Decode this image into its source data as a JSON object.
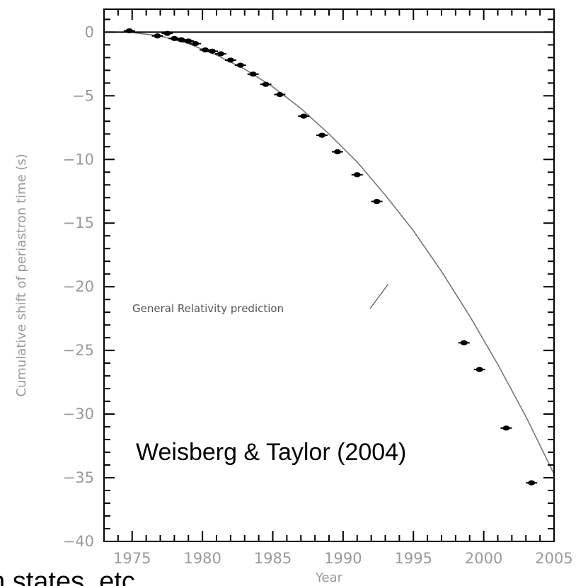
{
  "chart_data": {
    "type": "scatter",
    "xlabel": "Year",
    "ylabel": "Cumulative shift of periastron time (s)",
    "xlim": [
      1973,
      2005
    ],
    "ylim": [
      -40,
      1.8
    ],
    "xticks": [
      1975,
      1980,
      1985,
      1990,
      1995,
      2000,
      2005
    ],
    "yticks": [
      0,
      -5,
      -10,
      -15,
      -20,
      -25,
      -30,
      -35,
      -40
    ],
    "x_tick_labels": [
      "1975",
      "1980",
      "1985",
      "1990",
      "1995",
      "2000",
      "2005"
    ],
    "y_tick_labels": [
      "0",
      "−5",
      "−10",
      "−15",
      "−20",
      "−25",
      "−30",
      "−35",
      "−40"
    ],
    "grid": false,
    "series": [
      {
        "x": [
          1974.8,
          1976.8,
          1977.5,
          1978.0,
          1978.5,
          1979.0,
          1979.5,
          1980.2,
          1980.7,
          1981.3,
          1982.0,
          1982.7,
          1983.6,
          1984.5,
          1985.5,
          1987.2,
          1988.5,
          1989.6,
          1991.0,
          1992.4,
          1998.6,
          1999.7,
          2001.6,
          2003.4
        ],
        "y": [
          0.1,
          -0.3,
          -0.1,
          -0.5,
          -0.6,
          -0.7,
          -0.9,
          -1.4,
          -1.5,
          -1.7,
          -2.2,
          -2.6,
          -3.3,
          -4.1,
          -4.9,
          -6.6,
          -8.1,
          -9.4,
          -11.2,
          -13.3,
          -24.4,
          -26.5,
          -31.1,
          -35.4
        ]
      }
    ],
    "reference_line": {
      "y": 0
    },
    "curve": {
      "label": "General Relativity prediction",
      "x": [
        1974.8,
        1977,
        1979,
        1981,
        1983,
        1985,
        1987,
        1989,
        1991,
        1993,
        1995,
        1997,
        1999,
        2001,
        2003,
        2005
      ],
      "y": [
        0,
        -0.3,
        -0.9,
        -1.8,
        -2.9,
        -4.3,
        -6.0,
        -8.0,
        -10.2,
        -12.8,
        -15.6,
        -18.8,
        -22.3,
        -26.1,
        -30.2,
        -34.7
      ]
    },
    "credit": "Weisberg & Taylor (2004)"
  },
  "stray_text": "n states, etc"
}
